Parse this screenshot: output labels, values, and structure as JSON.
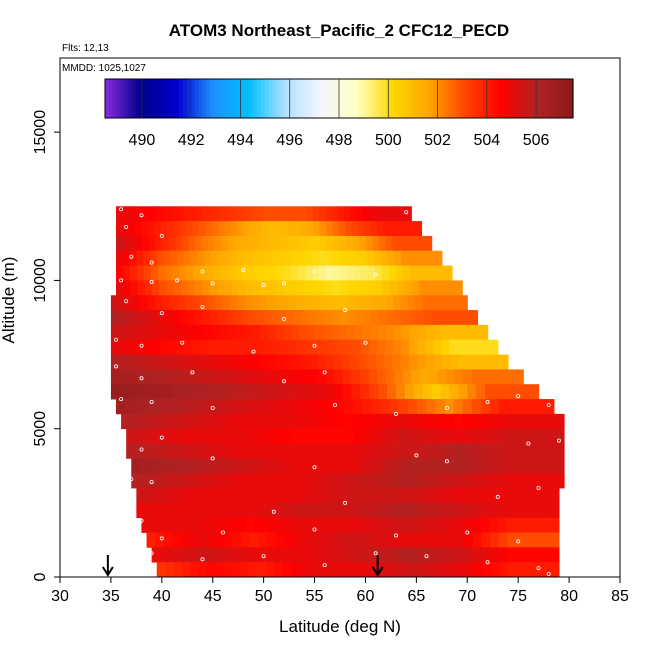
{
  "chart_data": {
    "type": "heatmap",
    "title": "ATOM3 Northeast_Pacific_2 CFC12_PECD",
    "flights_text": "Flts: 12,13",
    "dates_text": "MMDD: 1025,1027",
    "xlabel": "Latitude (deg N)",
    "ylabel": "Altitude (m)",
    "xlim": [
      30,
      85
    ],
    "ylim": [
      0,
      17500
    ],
    "x_ticks": [
      "30",
      "35",
      "40",
      "45",
      "50",
      "55",
      "60",
      "65",
      "70",
      "75",
      "80",
      "85"
    ],
    "y_ticks": [
      "0",
      "5000",
      "10000",
      "15000"
    ],
    "colorbar": {
      "range": [
        488.5,
        507.5
      ],
      "tick_labels": [
        "490",
        "492",
        "494",
        "496",
        "498",
        "500",
        "502",
        "504",
        "506"
      ],
      "colors": [
        "#8a2be2",
        "#00008b",
        "#0000cd",
        "#1e90ff",
        "#00bfff",
        "#b0e0ff",
        "#f5f5ff",
        "#ffffc0",
        "#ffd700",
        "#ffa500",
        "#ff4500",
        "#ff0000",
        "#b22222",
        "#8b1a1a"
      ]
    },
    "arrows_lat": [
      34.7,
      61.2
    ],
    "rows": [
      {
        "alt": [
          12000,
          12500
        ],
        "lat": [
          35.5,
          64.5
        ],
        "values": [
          505,
          504.5,
          504,
          503.5,
          503,
          503,
          504,
          505
        ]
      },
      {
        "alt": [
          11500,
          12000
        ],
        "lat": [
          35.5,
          65.5
        ],
        "values": [
          505,
          504,
          503,
          502,
          501,
          501.5,
          503,
          504
        ]
      },
      {
        "alt": [
          11000,
          11500
        ],
        "lat": [
          35.5,
          66.5
        ],
        "values": [
          505.5,
          504,
          502.5,
          501.5,
          501,
          500.5,
          501.5,
          503
        ]
      },
      {
        "alt": [
          10500,
          11000
        ],
        "lat": [
          35.5,
          67.5
        ],
        "values": [
          505,
          503,
          502,
          501,
          500.5,
          500,
          500.5,
          502
        ]
      },
      {
        "alt": [
          10000,
          10500
        ],
        "lat": [
          35.5,
          68.5
        ],
        "values": [
          504.5,
          502.5,
          501.5,
          500.5,
          500,
          499,
          499.5,
          501
        ]
      },
      {
        "alt": [
          9500,
          10000
        ],
        "lat": [
          35.5,
          69.5
        ],
        "values": [
          505,
          503,
          502,
          501,
          500.5,
          500,
          500.5,
          502
        ]
      },
      {
        "alt": [
          9000,
          9500
        ],
        "lat": [
          35.0,
          70.0
        ],
        "values": [
          505.5,
          504,
          503,
          502,
          501.5,
          501,
          501.5,
          502.5
        ]
      },
      {
        "alt": [
          8500,
          9000
        ],
        "lat": [
          35.0,
          71.0
        ],
        "values": [
          506,
          505,
          504,
          503,
          502.5,
          502,
          502.5,
          503
        ]
      },
      {
        "alt": [
          8000,
          8500
        ],
        "lat": [
          35.0,
          72.0
        ],
        "values": [
          505.5,
          505,
          504.5,
          504,
          503,
          502.5,
          502,
          501
        ]
      },
      {
        "alt": [
          7500,
          8000
        ],
        "lat": [
          35.0,
          73.0
        ],
        "values": [
          505,
          504.5,
          504,
          504,
          503.5,
          503,
          502,
          500
        ]
      },
      {
        "alt": [
          7000,
          7500
        ],
        "lat": [
          35.0,
          74.0
        ],
        "values": [
          506,
          505.5,
          505,
          504.5,
          504,
          503,
          502,
          501
        ]
      },
      {
        "alt": [
          6500,
          7000
        ],
        "lat": [
          35.0,
          75.5
        ],
        "values": [
          506.5,
          506,
          505.5,
          505,
          504.5,
          503,
          501.5,
          502.5
        ]
      },
      {
        "alt": [
          6000,
          6500
        ],
        "lat": [
          35.0,
          77.0
        ],
        "values": [
          507,
          506.5,
          506,
          505.5,
          505,
          503,
          500.5,
          503
        ]
      },
      {
        "alt": [
          5500,
          6000
        ],
        "lat": [
          35.5,
          78.5
        ],
        "values": [
          506.5,
          506,
          505.5,
          505,
          504.5,
          503.5,
          502,
          504
        ]
      },
      {
        "alt": [
          5000,
          5500
        ],
        "lat": [
          36.0,
          79.5
        ],
        "values": [
          506,
          505.5,
          505,
          505,
          504.5,
          505,
          504.5,
          505
        ]
      },
      {
        "alt": [
          4500,
          5000
        ],
        "lat": [
          36.5,
          79.5
        ],
        "values": [
          505.5,
          505,
          505,
          504.5,
          504.5,
          505.5,
          505,
          505.5
        ]
      },
      {
        "alt": [
          4000,
          4500
        ],
        "lat": [
          36.5,
          79.5
        ],
        "values": [
          506,
          505.5,
          505,
          505,
          505,
          505.5,
          506,
          505.5
        ]
      },
      {
        "alt": [
          3500,
          4000
        ],
        "lat": [
          37.0,
          79.5
        ],
        "values": [
          506.5,
          506,
          505.5,
          505,
          505,
          506,
          506,
          505.5
        ]
      },
      {
        "alt": [
          3000,
          3500
        ],
        "lat": [
          37.0,
          79.5
        ],
        "values": [
          506,
          505.5,
          505,
          505,
          505.5,
          506,
          505.5,
          505
        ]
      },
      {
        "alt": [
          2500,
          3000
        ],
        "lat": [
          37.5,
          79.0
        ],
        "values": [
          505.5,
          505,
          505,
          505,
          505.5,
          505.5,
          505,
          505
        ]
      },
      {
        "alt": [
          2000,
          2500
        ],
        "lat": [
          37.5,
          79.0
        ],
        "values": [
          505,
          505,
          505,
          505.5,
          505.5,
          506,
          505.5,
          505
        ]
      },
      {
        "alt": [
          1500,
          2000
        ],
        "lat": [
          38.0,
          79.0
        ],
        "values": [
          505,
          505,
          504.5,
          505,
          505,
          505.5,
          505,
          504
        ]
      },
      {
        "alt": [
          1000,
          1500
        ],
        "lat": [
          38.5,
          79.0
        ],
        "values": [
          504,
          505,
          504,
          505,
          505.5,
          505,
          505,
          503
        ]
      },
      {
        "alt": [
          500,
          1000
        ],
        "lat": [
          39.0,
          79.0
        ],
        "values": [
          505,
          505.5,
          505,
          505,
          505.5,
          506,
          505.5,
          504.5
        ]
      },
      {
        "alt": [
          0,
          500
        ],
        "lat": [
          39.5,
          79.0
        ],
        "values": [
          503.5,
          504.5,
          504,
          505,
          505,
          505.5,
          505,
          504
        ]
      }
    ],
    "points": [
      [
        36,
        12400
      ],
      [
        38,
        12200
      ],
      [
        36.5,
        11800
      ],
      [
        40,
        11500
      ],
      [
        37,
        10800
      ],
      [
        39,
        10600
      ],
      [
        44,
        10300
      ],
      [
        48,
        10350
      ],
      [
        55,
        10300
      ],
      [
        61,
        10200
      ],
      [
        64,
        12300
      ],
      [
        66,
        11900
      ],
      [
        36,
        10000
      ],
      [
        39,
        9950
      ],
      [
        41.5,
        10000
      ],
      [
        45,
        9900
      ],
      [
        50,
        9850
      ],
      [
        52,
        9900
      ],
      [
        36.5,
        9300
      ],
      [
        40,
        8900
      ],
      [
        44,
        9100
      ],
      [
        52,
        8700
      ],
      [
        58,
        9000
      ],
      [
        35.5,
        8000
      ],
      [
        38,
        7800
      ],
      [
        42,
        7900
      ],
      [
        49,
        7600
      ],
      [
        55,
        7800
      ],
      [
        60,
        7900
      ],
      [
        35.5,
        7100
      ],
      [
        38,
        6700
      ],
      [
        43,
        6900
      ],
      [
        52,
        6600
      ],
      [
        56,
        6900
      ],
      [
        36,
        6000
      ],
      [
        39,
        5900
      ],
      [
        45,
        5700
      ],
      [
        57,
        5800
      ],
      [
        63,
        5500
      ],
      [
        68,
        5700
      ],
      [
        72,
        5900
      ],
      [
        75,
        6100
      ],
      [
        78,
        5800
      ],
      [
        36,
        4500
      ],
      [
        38,
        4300
      ],
      [
        40,
        4700
      ],
      [
        45,
        4000
      ],
      [
        55,
        3700
      ],
      [
        65,
        4100
      ],
      [
        68,
        3900
      ],
      [
        76,
        4500
      ],
      [
        79,
        4600
      ],
      [
        37,
        3300
      ],
      [
        39,
        3200
      ],
      [
        51,
        2200
      ],
      [
        58,
        2500
      ],
      [
        73,
        2700
      ],
      [
        77,
        3000
      ],
      [
        38,
        1900
      ],
      [
        40,
        1300
      ],
      [
        46,
        1500
      ],
      [
        55,
        1600
      ],
      [
        63,
        1400
      ],
      [
        70,
        1500
      ],
      [
        75,
        1200
      ],
      [
        39,
        800
      ],
      [
        44,
        600
      ],
      [
        50,
        700
      ],
      [
        56,
        400
      ],
      [
        61,
        800
      ],
      [
        66,
        700
      ],
      [
        72,
        500
      ],
      [
        77,
        300
      ],
      [
        78,
        100
      ]
    ]
  }
}
